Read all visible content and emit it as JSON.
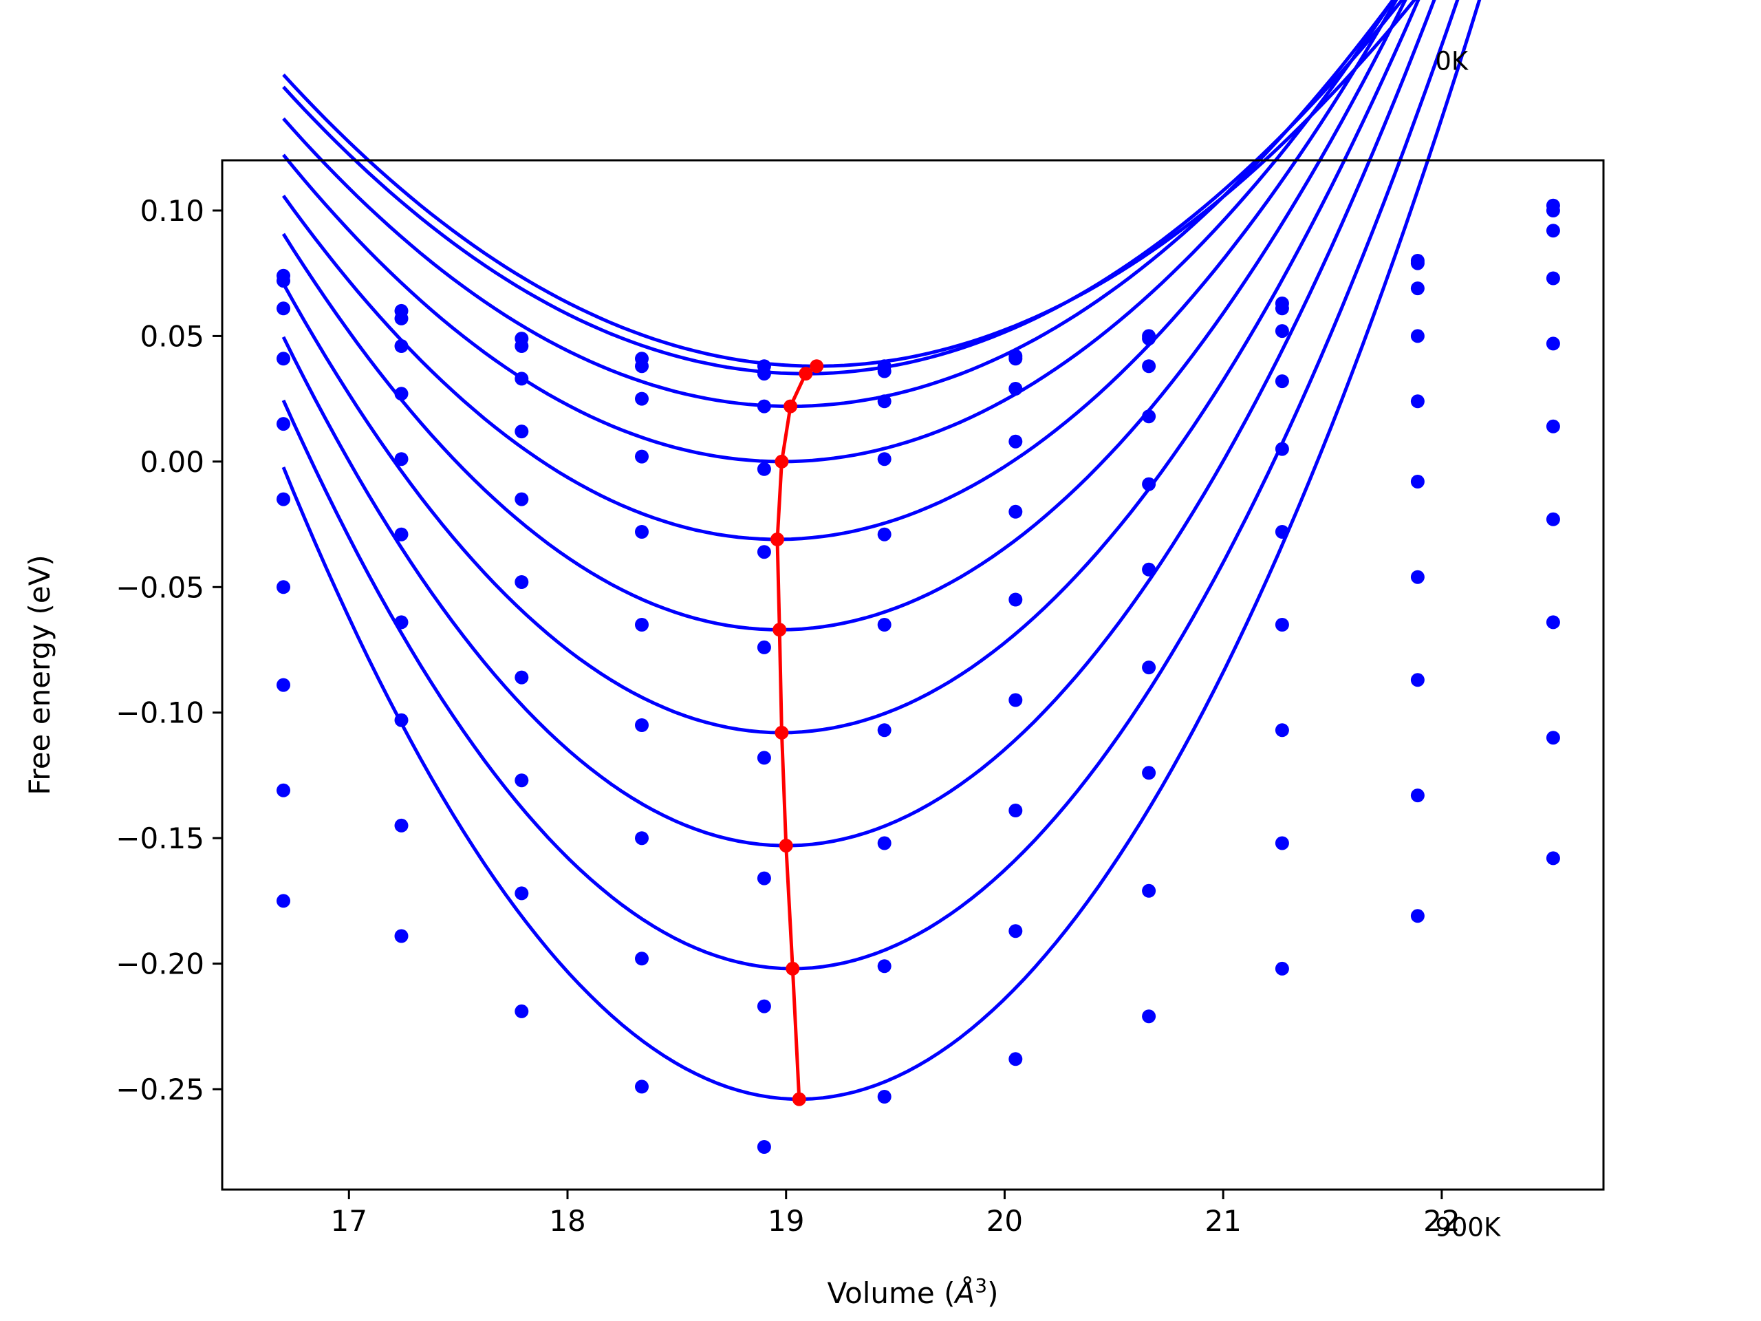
{
  "chart_data": {
    "type": "line",
    "xlabel_text": "Volume (",
    "xlabel_symbol": "Å",
    "xlabel_exp": "3",
    "xlabel_close": ")",
    "ylabel": "Free energy (eV)",
    "xlim": [
      16.42,
      22.74
    ],
    "ylim": [
      -0.29,
      0.12
    ],
    "xticks": [
      17,
      18,
      19,
      20,
      21,
      22
    ],
    "xtick_labels": [
      "17",
      "18",
      "19",
      "20",
      "21",
      "22"
    ],
    "yticks": [
      0.1,
      0.05,
      0.0,
      -0.05,
      -0.1,
      -0.15,
      -0.2,
      -0.25
    ],
    "ytick_labels": [
      "0.10",
      "0.05",
      "0.00",
      "−0.05",
      "−0.10",
      "−0.15",
      "−0.20",
      "−0.25"
    ],
    "annotations": [
      {
        "text": "0K",
        "x": 21.97,
        "y": 0.156
      },
      {
        "text": "900K",
        "x": 21.97,
        "y": -0.3085
      }
    ],
    "colors": {
      "curves": "#0000ff",
      "minima": "#ff0000",
      "axes": "#000000"
    },
    "volumes": [
      16.7,
      17.24,
      17.79,
      18.34,
      18.9,
      19.45,
      20.05,
      20.66,
      21.27,
      21.89,
      22.51
    ],
    "series": [
      {
        "points": [
          0.074,
          0.06,
          0.049,
          0.041,
          0.038,
          0.038,
          0.042,
          0.05,
          0.063,
          0.08,
          0.102
        ],
        "fit": {
          "v0": 19.14,
          "e0": 0.038,
          "a": 0.0195
        }
      },
      {
        "points": [
          0.072,
          0.057,
          0.046,
          0.038,
          0.035,
          0.036,
          0.041,
          0.049,
          0.061,
          0.079,
          0.1
        ],
        "fit": {
          "v0": 19.09,
          "e0": 0.035,
          "a": 0.02
        }
      },
      {
        "points": [
          0.061,
          0.046,
          0.033,
          0.025,
          0.022,
          0.024,
          0.029,
          0.038,
          0.052,
          0.069,
          0.092
        ],
        "fit": {
          "v0": 19.02,
          "e0": 0.022,
          "a": 0.0213
        }
      },
      {
        "points": [
          0.041,
          0.027,
          0.012,
          0.002,
          -0.003,
          0.001,
          0.008,
          0.018,
          0.032,
          0.05,
          0.073
        ],
        "fit": {
          "v0": 18.98,
          "e0": 0.0,
          "a": 0.0235
        }
      },
      {
        "points": [
          0.015,
          0.001,
          -0.015,
          -0.028,
          -0.036,
          -0.029,
          -0.02,
          -0.009,
          0.005,
          0.024,
          0.047
        ],
        "fit": {
          "v0": 18.96,
          "e0": -0.031,
          "a": 0.0268
        }
      },
      {
        "points": [
          -0.015,
          -0.029,
          -0.048,
          -0.065,
          -0.074,
          -0.065,
          -0.055,
          -0.043,
          -0.028,
          -0.008,
          0.014
        ],
        "fit": {
          "v0": 18.97,
          "e0": -0.067,
          "a": 0.0306
        }
      },
      {
        "points": [
          -0.05,
          -0.064,
          -0.086,
          -0.105,
          -0.118,
          -0.107,
          -0.095,
          -0.082,
          -0.065,
          -0.046,
          -0.023
        ],
        "fit": {
          "v0": 18.98,
          "e0": -0.108,
          "a": 0.0344
        }
      },
      {
        "points": [
          -0.089,
          -0.103,
          -0.127,
          -0.15,
          -0.166,
          -0.152,
          -0.139,
          -0.124,
          -0.107,
          -0.087,
          -0.064
        ],
        "fit": {
          "v0": 19.0,
          "e0": -0.153,
          "a": 0.0383
        }
      },
      {
        "points": [
          -0.131,
          -0.145,
          -0.172,
          -0.198,
          -0.217,
          -0.201,
          -0.187,
          -0.171,
          -0.152,
          -0.133,
          -0.11
        ],
        "fit": {
          "v0": 19.03,
          "e0": -0.202,
          "a": 0.0417
        }
      },
      {
        "points": [
          -0.175,
          -0.189,
          -0.219,
          -0.249,
          -0.273,
          -0.253,
          -0.238,
          -0.221,
          -0.202,
          -0.181,
          -0.158
        ],
        "fit": {
          "v0": 19.06,
          "e0": -0.254,
          "a": 0.0452
        }
      }
    ],
    "minima_line": [
      {
        "x": 19.14,
        "y": 0.038
      },
      {
        "x": 19.09,
        "y": 0.035
      },
      {
        "x": 19.02,
        "y": 0.022
      },
      {
        "x": 18.98,
        "y": 0.0
      },
      {
        "x": 18.96,
        "y": -0.031
      },
      {
        "x": 18.97,
        "y": -0.067
      },
      {
        "x": 18.98,
        "y": -0.108
      },
      {
        "x": 19.0,
        "y": -0.153
      },
      {
        "x": 19.03,
        "y": -0.202
      },
      {
        "x": 19.06,
        "y": -0.254
      }
    ]
  }
}
